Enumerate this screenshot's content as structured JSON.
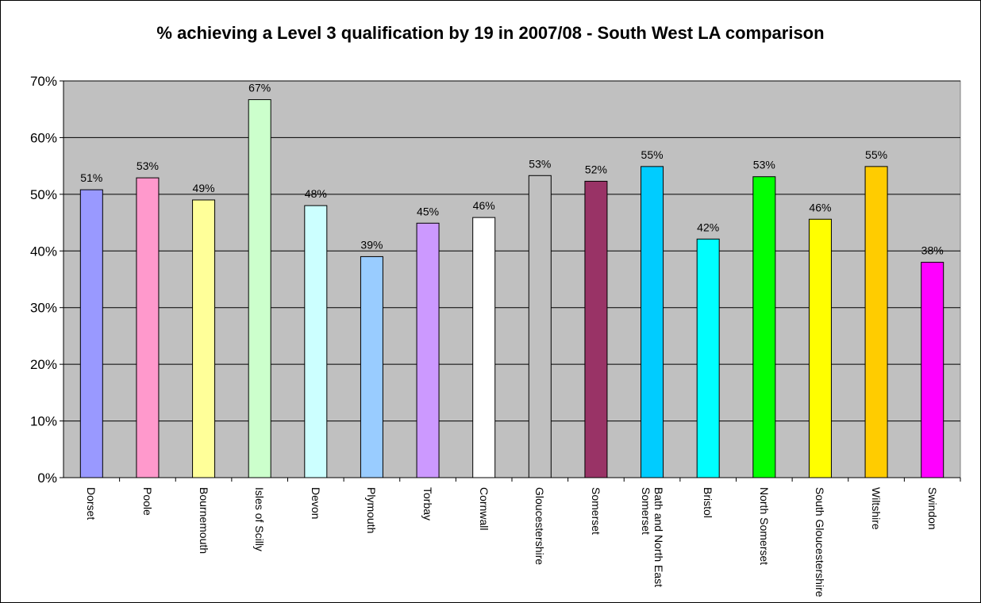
{
  "chart_data": {
    "type": "bar",
    "title": "% achieving a Level 3 qualification by 19 in 2007/08 - South West LA comparison",
    "categories": [
      "Dorset",
      "Poole",
      "Bournemouth",
      "Isles of Scilly",
      "Devon",
      "Plymouth",
      "Torbay",
      "Cornwall",
      "Gloucestershire",
      "Somerset",
      "Bath and North East Somerset",
      "Bristol",
      "North Somerset",
      "South Gloucestershire",
      "Wiltshire",
      "Swindon"
    ],
    "values": [
      50.8,
      52.9,
      49.0,
      66.7,
      48.0,
      39.0,
      44.9,
      45.9,
      53.3,
      52.3,
      54.9,
      42.1,
      53.1,
      45.6,
      54.9,
      38.0
    ],
    "value_labels": [
      "51%",
      "53%",
      "49%",
      "67%",
      "48%",
      "39%",
      "45%",
      "46%",
      "53%",
      "52%",
      "55%",
      "42%",
      "53%",
      "46%",
      "55%",
      "38%"
    ],
    "colors": [
      "#9999ff",
      "#ff99cc",
      "#ffff99",
      "#ccffcc",
      "#ccffff",
      "#99ccff",
      "#cc99ff",
      "#ffffff",
      "#c0c0c0",
      "#993366",
      "#00ccff",
      "#00ffff",
      "#00ff00",
      "#ffff00",
      "#ffcc00",
      "#ff00ff"
    ],
    "ylim": [
      0,
      70
    ],
    "yticks": [
      {
        "value": 0,
        "label": "0%"
      },
      {
        "value": 10,
        "label": "10%"
      },
      {
        "value": 20,
        "label": "20%"
      },
      {
        "value": 30,
        "label": "30%"
      },
      {
        "value": 40,
        "label": "40%"
      },
      {
        "value": 50,
        "label": "50%"
      },
      {
        "value": 60,
        "label": "60%"
      },
      {
        "value": 70,
        "label": "70%"
      }
    ],
    "grid": true
  }
}
